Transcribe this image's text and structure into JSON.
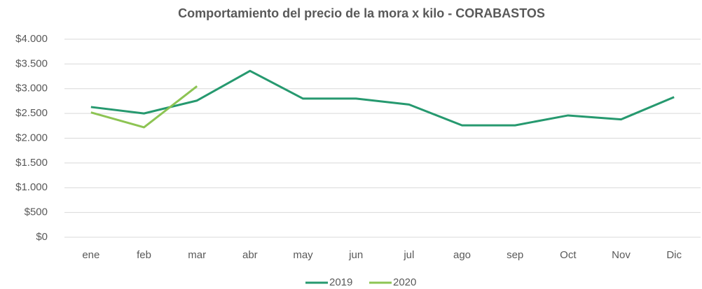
{
  "chart_data": {
    "type": "line",
    "title": "Comportamiento del precio de la mora x kilo - CORABASTOS",
    "categories": [
      "ene",
      "feb",
      "mar",
      "abr",
      "may",
      "jun",
      "jul",
      "ago",
      "sep",
      "Oct",
      "Nov",
      "Dic"
    ],
    "series": [
      {
        "name": "2019",
        "color": "#26996f",
        "values": [
          2630,
          2500,
          2760,
          3360,
          2800,
          2800,
          2680,
          2260,
          2260,
          2460,
          2380,
          2830
        ]
      },
      {
        "name": "2020",
        "color": "#8dc453",
        "values": [
          2520,
          2220,
          3050,
          null,
          null,
          null,
          null,
          null,
          null,
          null,
          null,
          null
        ]
      }
    ],
    "ylim": [
      0,
      4000
    ],
    "yticks": [
      {
        "value": 0,
        "label": "$0"
      },
      {
        "value": 500,
        "label": "$500"
      },
      {
        "value": 1000,
        "label": "$1.000"
      },
      {
        "value": 1500,
        "label": "$1.500"
      },
      {
        "value": 2000,
        "label": "$2.000"
      },
      {
        "value": 2500,
        "label": "$2.500"
      },
      {
        "value": 3000,
        "label": "$3.000"
      },
      {
        "value": 3500,
        "label": "$3.500"
      },
      {
        "value": 4000,
        "label": "$4.000"
      }
    ],
    "grid": true,
    "legend": "bottom"
  }
}
